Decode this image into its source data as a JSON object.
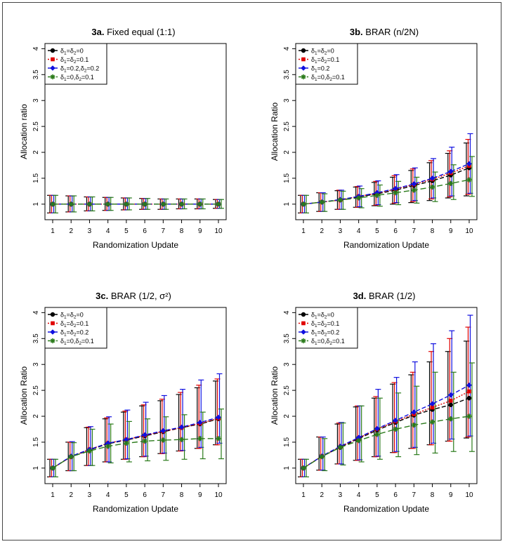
{
  "chart_data": [
    {
      "type": "line",
      "title_bold": "3a.",
      "title_rest": "Fixed equal (1:1)",
      "xlabel": "Randomization Update",
      "ylabel": "Allocation ratio",
      "categories": [
        1,
        2,
        3,
        4,
        5,
        6,
        7,
        8,
        9,
        10
      ],
      "yticks": [
        1,
        1.5,
        2,
        2.5,
        3,
        3.5,
        4
      ],
      "ylim": [
        0.7,
        4.1
      ],
      "legend_position": "top-left",
      "legend": [
        {
          "pre": "δ",
          "s1": "1",
          "mid": "=δ",
          "s2": "2",
          "post": "=0"
        },
        {
          "pre": "δ",
          "s1": "1",
          "mid": "=δ",
          "s2": "2",
          "post": "=0.1"
        },
        {
          "pre": "δ",
          "s1": "1",
          "mid": "=0.2,δ",
          "s2": "2",
          "post": "=0.2"
        },
        {
          "pre": "δ",
          "s1": "1",
          "mid": "=0,δ",
          "s2": "2",
          "post": "=0.1"
        }
      ],
      "series": [
        {
          "name": "d1=d2=0",
          "color": "#000000",
          "marker": "circle",
          "values": [
            1,
            1,
            1,
            1,
            1,
            1,
            1,
            1,
            1,
            1
          ],
          "lower": [
            0.83,
            0.85,
            0.87,
            0.88,
            0.89,
            0.9,
            0.9,
            0.91,
            0.91,
            0.92
          ],
          "upper": [
            1.17,
            1.16,
            1.14,
            1.13,
            1.12,
            1.11,
            1.1,
            1.1,
            1.1,
            1.09
          ]
        },
        {
          "name": "d1=d2=0.1",
          "color": "#e00000",
          "marker": "square",
          "values": [
            1,
            1,
            1,
            1,
            1,
            1,
            1,
            1,
            1,
            1
          ],
          "lower": [
            0.83,
            0.85,
            0.87,
            0.88,
            0.89,
            0.9,
            0.9,
            0.91,
            0.91,
            0.92
          ],
          "upper": [
            1.17,
            1.16,
            1.14,
            1.13,
            1.12,
            1.11,
            1.1,
            1.1,
            1.1,
            1.09
          ]
        },
        {
          "name": "d1=0.2,d2=0.2",
          "color": "#1010e0",
          "marker": "diamond",
          "values": [
            1,
            1,
            1,
            1,
            1,
            1,
            1,
            1,
            1,
            1
          ],
          "lower": [
            0.83,
            0.85,
            0.87,
            0.88,
            0.89,
            0.9,
            0.9,
            0.91,
            0.91,
            0.92
          ],
          "upper": [
            1.17,
            1.16,
            1.14,
            1.13,
            1.12,
            1.11,
            1.1,
            1.1,
            1.1,
            1.09
          ]
        },
        {
          "name": "d1=0,d2=0.1",
          "color": "#2a7a1a",
          "marker": "star",
          "values": [
            1,
            1,
            1,
            1,
            1,
            1,
            1,
            1,
            1,
            1
          ],
          "lower": [
            0.83,
            0.85,
            0.87,
            0.88,
            0.89,
            0.9,
            0.9,
            0.91,
            0.91,
            0.92
          ],
          "upper": [
            1.17,
            1.16,
            1.14,
            1.13,
            1.12,
            1.11,
            1.1,
            1.1,
            1.1,
            1.09
          ]
        }
      ]
    },
    {
      "type": "line",
      "title_bold": "3b.",
      "title_rest": "BRAR (n/2N)",
      "xlabel": "Randomization Update",
      "ylabel": "Allocation Ratio",
      "categories": [
        1,
        2,
        3,
        4,
        5,
        6,
        7,
        8,
        9,
        10
      ],
      "yticks": [
        1,
        1.5,
        2,
        2.5,
        3,
        3.5,
        4
      ],
      "ylim": [
        0.7,
        4.1
      ],
      "legend_position": "top-left",
      "legend": [
        {
          "pre": "δ",
          "s1": "1",
          "mid": "=δ",
          "s2": "2",
          "post": "=0"
        },
        {
          "pre": "δ",
          "s1": "1",
          "mid": "=δ",
          "s2": "2",
          "post": "=0.1"
        },
        {
          "pre": "δ",
          "s1": "1",
          "mid": "=0.2",
          "s2": "",
          "post": ""
        },
        {
          "pre": "δ",
          "s1": "1",
          "mid": "=0,δ",
          "s2": "2",
          "post": "=0.1"
        }
      ],
      "series": [
        {
          "name": "d1=d2=0",
          "color": "#000000",
          "marker": "circle",
          "values": [
            1,
            1.04,
            1.08,
            1.14,
            1.2,
            1.27,
            1.36,
            1.45,
            1.56,
            1.7
          ],
          "lower": [
            0.83,
            0.86,
            0.9,
            0.94,
            0.97,
            1.0,
            1.03,
            1.07,
            1.12,
            1.16
          ],
          "upper": [
            1.17,
            1.22,
            1.26,
            1.33,
            1.42,
            1.52,
            1.65,
            1.8,
            1.98,
            2.18
          ]
        },
        {
          "name": "d1=d2=0.1",
          "color": "#e00000",
          "marker": "square",
          "values": [
            1,
            1.04,
            1.08,
            1.15,
            1.21,
            1.29,
            1.38,
            1.48,
            1.6,
            1.74
          ],
          "lower": [
            0.83,
            0.86,
            0.9,
            0.94,
            0.98,
            1.02,
            1.05,
            1.1,
            1.14,
            1.19
          ],
          "upper": [
            1.17,
            1.22,
            1.27,
            1.34,
            1.44,
            1.55,
            1.68,
            1.84,
            2.03,
            2.25
          ]
        },
        {
          "name": "d1=0.2",
          "color": "#1010e0",
          "marker": "diamond",
          "values": [
            1,
            1.04,
            1.09,
            1.15,
            1.22,
            1.3,
            1.39,
            1.5,
            1.63,
            1.78
          ],
          "lower": [
            0.83,
            0.86,
            0.9,
            0.95,
            0.99,
            1.03,
            1.07,
            1.12,
            1.16,
            1.21
          ],
          "upper": [
            1.17,
            1.22,
            1.27,
            1.35,
            1.45,
            1.57,
            1.7,
            1.88,
            2.1,
            2.36
          ]
        },
        {
          "name": "d1=0,d2=0.1",
          "color": "#2a7a1a",
          "marker": "star",
          "values": [
            1,
            1.04,
            1.08,
            1.12,
            1.17,
            1.22,
            1.27,
            1.33,
            1.4,
            1.47
          ],
          "lower": [
            0.83,
            0.86,
            0.9,
            0.93,
            0.96,
            0.99,
            1.02,
            1.05,
            1.09,
            1.15
          ],
          "upper": [
            1.17,
            1.2,
            1.25,
            1.3,
            1.37,
            1.44,
            1.52,
            1.62,
            1.76,
            1.92
          ]
        }
      ]
    },
    {
      "type": "line",
      "title_bold": "3c.",
      "title_rest": "BRAR (1/2, σ²)",
      "xlabel": "Randomization Update",
      "ylabel": "Allocation Ratio",
      "categories": [
        1,
        2,
        3,
        4,
        5,
        6,
        7,
        8,
        9,
        10
      ],
      "yticks": [
        1,
        1.5,
        2,
        2.5,
        3,
        3.5,
        4
      ],
      "ylim": [
        0.7,
        4.1
      ],
      "legend_position": "top-left",
      "legend": [
        {
          "pre": "δ",
          "s1": "1",
          "mid": "=δ",
          "s2": "2",
          "post": "=0"
        },
        {
          "pre": "δ",
          "s1": "1",
          "mid": "=δ",
          "s2": "2",
          "post": "=0.1"
        },
        {
          "pre": "δ",
          "s1": "1",
          "mid": "=δ",
          "s2": "2",
          "post": "=0.2"
        },
        {
          "pre": "δ",
          "s1": "1",
          "mid": "=0,δ",
          "s2": "2",
          "post": "=0.1"
        }
      ],
      "series": [
        {
          "name": "d1=d2=0",
          "color": "#000000",
          "marker": "circle",
          "values": [
            1,
            1.22,
            1.35,
            1.47,
            1.54,
            1.62,
            1.7,
            1.78,
            1.85,
            1.95
          ],
          "lower": [
            0.83,
            0.95,
            1.05,
            1.12,
            1.17,
            1.22,
            1.28,
            1.33,
            1.38,
            1.45
          ],
          "upper": [
            1.17,
            1.5,
            1.78,
            1.95,
            2.08,
            2.2,
            2.3,
            2.42,
            2.55,
            2.68
          ]
        },
        {
          "name": "d1=d2=0.1",
          "color": "#e00000",
          "marker": "square",
          "values": [
            1,
            1.22,
            1.36,
            1.48,
            1.55,
            1.63,
            1.71,
            1.78,
            1.86,
            1.96
          ],
          "lower": [
            0.83,
            0.95,
            1.05,
            1.12,
            1.17,
            1.22,
            1.28,
            1.33,
            1.38,
            1.45
          ],
          "upper": [
            1.17,
            1.5,
            1.79,
            1.97,
            2.1,
            2.22,
            2.33,
            2.46,
            2.6,
            2.72
          ]
        },
        {
          "name": "d1=d2=0.2",
          "color": "#1010e0",
          "marker": "diamond",
          "values": [
            1,
            1.23,
            1.36,
            1.48,
            1.55,
            1.64,
            1.72,
            1.79,
            1.88,
            1.98
          ],
          "lower": [
            0.83,
            0.95,
            1.05,
            1.12,
            1.18,
            1.23,
            1.29,
            1.34,
            1.4,
            1.48
          ],
          "upper": [
            1.17,
            1.51,
            1.8,
            1.99,
            2.12,
            2.27,
            2.4,
            2.52,
            2.7,
            2.82
          ]
        },
        {
          "name": "d1=0,d2=0.1",
          "color": "#2a7a1a",
          "marker": "star",
          "values": [
            1,
            1.22,
            1.33,
            1.42,
            1.48,
            1.52,
            1.54,
            1.55,
            1.57,
            1.57
          ],
          "lower": [
            0.83,
            0.95,
            1.05,
            1.1,
            1.12,
            1.14,
            1.15,
            1.17,
            1.18,
            1.18
          ],
          "upper": [
            1.17,
            1.49,
            1.75,
            1.85,
            1.9,
            1.95,
            1.99,
            2.03,
            2.08,
            2.14
          ]
        }
      ]
    },
    {
      "type": "line",
      "title_bold": "3d.",
      "title_rest": "BRAR (1/2)",
      "xlabel": "Randomization Update",
      "ylabel": "Allocation Ratio",
      "categories": [
        1,
        2,
        3,
        4,
        5,
        6,
        7,
        8,
        9,
        10
      ],
      "yticks": [
        1,
        1.5,
        2,
        2.5,
        3,
        3.5,
        4
      ],
      "ylim": [
        0.7,
        4.1
      ],
      "legend_position": "top-left",
      "legend": [
        {
          "pre": "δ",
          "s1": "1",
          "mid": "=δ",
          "s2": "2",
          "post": "=0"
        },
        {
          "pre": "δ",
          "s1": "1",
          "mid": "=δ",
          "s2": "2",
          "post": "=0.1"
        },
        {
          "pre": "δ",
          "s1": "1",
          "mid": "=δ",
          "s2": "2",
          "post": "=0.2"
        },
        {
          "pre": "δ",
          "s1": "1",
          "mid": "=0,δ",
          "s2": "2",
          "post": "=0.1"
        }
      ],
      "series": [
        {
          "name": "d1=d2=0",
          "color": "#000000",
          "marker": "circle",
          "values": [
            1,
            1.23,
            1.4,
            1.57,
            1.73,
            1.88,
            2.02,
            2.13,
            2.22,
            2.35
          ],
          "lower": [
            0.83,
            0.96,
            1.08,
            1.15,
            1.22,
            1.3,
            1.38,
            1.45,
            1.52,
            1.58
          ],
          "upper": [
            1.17,
            1.6,
            1.85,
            2.18,
            2.35,
            2.62,
            2.8,
            3.05,
            3.25,
            3.45
          ]
        },
        {
          "name": "d1=d2=0.1",
          "color": "#e00000",
          "marker": "square",
          "values": [
            1,
            1.23,
            1.41,
            1.58,
            1.75,
            1.9,
            2.04,
            2.17,
            2.3,
            2.48
          ],
          "lower": [
            0.83,
            0.96,
            1.08,
            1.15,
            1.22,
            1.3,
            1.38,
            1.45,
            1.52,
            1.6
          ],
          "upper": [
            1.17,
            1.6,
            1.87,
            2.2,
            2.38,
            2.65,
            2.85,
            3.25,
            3.5,
            3.72
          ]
        },
        {
          "name": "d1=d2=0.2",
          "color": "#1010e0",
          "marker": "diamond",
          "values": [
            1,
            1.23,
            1.42,
            1.59,
            1.76,
            1.92,
            2.08,
            2.24,
            2.41,
            2.6
          ],
          "lower": [
            0.83,
            0.96,
            1.08,
            1.16,
            1.23,
            1.32,
            1.4,
            1.48,
            1.56,
            1.62
          ],
          "upper": [
            1.17,
            1.6,
            1.88,
            2.2,
            2.52,
            2.75,
            3.05,
            3.4,
            3.65,
            3.95
          ]
        },
        {
          "name": "d1=0,d2=0.1",
          "color": "#2a7a1a",
          "marker": "star",
          "values": [
            1,
            1.22,
            1.4,
            1.53,
            1.65,
            1.75,
            1.83,
            1.89,
            1.95,
            2.0
          ],
          "lower": [
            0.83,
            0.95,
            1.06,
            1.12,
            1.17,
            1.22,
            1.26,
            1.29,
            1.32,
            1.32
          ],
          "upper": [
            1.17,
            1.57,
            1.87,
            2.2,
            2.35,
            2.45,
            2.58,
            2.85,
            2.85,
            3.03
          ]
        }
      ]
    }
  ]
}
